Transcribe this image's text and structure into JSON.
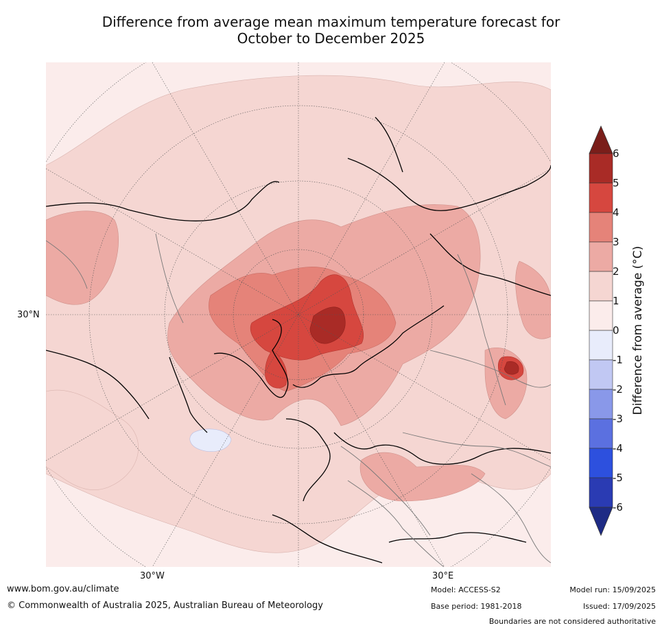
{
  "title_line1": "Difference from average mean maximum temperature forecast for",
  "title_line2": "October to December 2025",
  "map": {
    "lon_labels": [
      "30°W",
      "30°E"
    ],
    "lat_label": "30°N",
    "projection": "polar stereographic, north pole"
  },
  "colorbar": {
    "title": "Difference from average ($^\\circ$C)",
    "title_display": "Difference from average (°C)",
    "ticks": [
      "6",
      "5",
      "4",
      "3",
      "2",
      "1",
      "0",
      "-1",
      "-2",
      "-3",
      "-4",
      "-5",
      "-6"
    ],
    "colors": [
      "#7a1e1a",
      "#a92b26",
      "#d6473f",
      "#e58379",
      "#ecaaa4",
      "#f5d6d2",
      "#fbeceb",
      "#e8ecfb",
      "#c1c8f3",
      "#8998e9",
      "#5b70e0",
      "#2d50de",
      "#2a3bb3",
      "#1e2b85"
    ]
  },
  "footer": {
    "url": "www.bom.gov.au/climate",
    "copyright": "© Commonwealth of Australia 2025, Australian Bureau of Meteorology",
    "model": "Model: ACCESS-S2",
    "base_period": "Base period: 1981-2018",
    "model_run": "Model run: 15/09/2025",
    "issued": "Issued: 17/09/2025",
    "boundaries_note": "Boundaries are not considered authoritative"
  }
}
